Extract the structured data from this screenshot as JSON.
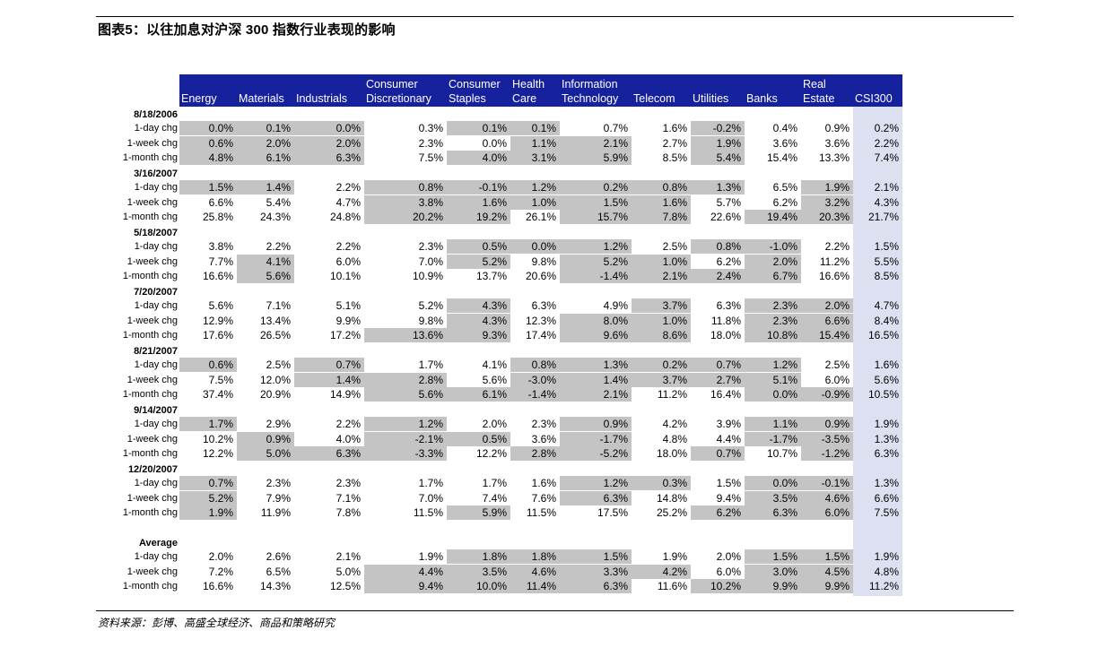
{
  "title": "图表5：以往加息对沪深 300 指数行业表现的影响",
  "source": "资料来源：彭博、高盛全球经济、商品和策略研究",
  "columns": [
    "Energy",
    "Materials",
    "Industrials",
    "Consumer\nDiscretionary",
    "Consumer\nStaples",
    "Health\nCare",
    "Information\nTechnology",
    "Telecom",
    "Utilities",
    "Banks",
    "Real\nEstate",
    "CSI300"
  ],
  "groups": [
    {
      "label": "8/18/2006",
      "rows": [
        {
          "label": "1-day chg",
          "values": [
            "0.0%",
            "0.1%",
            "0.0%",
            "0.3%",
            "0.1%",
            "0.1%",
            "0.7%",
            "1.6%",
            "-0.2%",
            "0.4%",
            "0.9%",
            "0.2%"
          ],
          "hl": [
            1,
            1,
            1,
            0,
            1,
            1,
            0,
            0,
            1,
            0,
            0,
            0
          ]
        },
        {
          "label": "1-week chg",
          "values": [
            "0.6%",
            "2.0%",
            "2.0%",
            "2.3%",
            "0.0%",
            "1.1%",
            "2.1%",
            "2.7%",
            "1.9%",
            "3.6%",
            "3.6%",
            "2.2%"
          ],
          "hl": [
            1,
            1,
            1,
            0,
            0,
            1,
            1,
            0,
            1,
            0,
            0,
            0
          ]
        },
        {
          "label": "1-month chg",
          "values": [
            "4.8%",
            "6.1%",
            "6.3%",
            "7.5%",
            "4.0%",
            "3.1%",
            "5.9%",
            "8.5%",
            "5.4%",
            "15.4%",
            "13.3%",
            "7.4%"
          ],
          "hl": [
            1,
            1,
            1,
            0,
            1,
            1,
            1,
            0,
            1,
            0,
            0,
            0
          ]
        }
      ]
    },
    {
      "label": "3/16/2007",
      "rows": [
        {
          "label": "1-day chg",
          "values": [
            "1.5%",
            "1.4%",
            "2.2%",
            "0.8%",
            "-0.1%",
            "1.2%",
            "0.2%",
            "0.8%",
            "1.3%",
            "6.5%",
            "1.9%",
            "2.1%"
          ],
          "hl": [
            1,
            1,
            0,
            1,
            1,
            1,
            1,
            1,
            1,
            0,
            1,
            0
          ]
        },
        {
          "label": "1-week chg",
          "values": [
            "6.6%",
            "5.4%",
            "4.7%",
            "3.8%",
            "1.6%",
            "1.0%",
            "1.5%",
            "1.6%",
            "5.7%",
            "6.2%",
            "3.2%",
            "4.3%"
          ],
          "hl": [
            0,
            0,
            0,
            1,
            1,
            1,
            1,
            1,
            0,
            0,
            1,
            0
          ]
        },
        {
          "label": "1-month chg",
          "values": [
            "25.8%",
            "24.3%",
            "24.8%",
            "20.2%",
            "19.2%",
            "26.1%",
            "15.7%",
            "7.8%",
            "22.6%",
            "19.4%",
            "20.3%",
            "21.7%"
          ],
          "hl": [
            0,
            0,
            0,
            1,
            1,
            0,
            1,
            1,
            0,
            1,
            1,
            0
          ]
        }
      ]
    },
    {
      "label": "5/18/2007",
      "rows": [
        {
          "label": "1-day chg",
          "values": [
            "3.8%",
            "2.2%",
            "2.2%",
            "2.3%",
            "0.5%",
            "0.0%",
            "1.2%",
            "2.5%",
            "0.8%",
            "-1.0%",
            "2.2%",
            "1.5%"
          ],
          "hl": [
            0,
            0,
            0,
            0,
            1,
            1,
            1,
            0,
            1,
            1,
            0,
            0
          ]
        },
        {
          "label": "1-week chg",
          "values": [
            "7.7%",
            "4.1%",
            "6.0%",
            "7.0%",
            "5.2%",
            "9.8%",
            "5.2%",
            "1.0%",
            "6.2%",
            "2.0%",
            "11.2%",
            "5.5%"
          ],
          "hl": [
            0,
            1,
            0,
            0,
            1,
            0,
            1,
            1,
            0,
            1,
            0,
            0
          ]
        },
        {
          "label": "1-month chg",
          "values": [
            "16.6%",
            "5.6%",
            "10.1%",
            "10.9%",
            "13.7%",
            "20.6%",
            "-1.4%",
            "2.1%",
            "2.4%",
            "6.7%",
            "16.6%",
            "8.5%"
          ],
          "hl": [
            0,
            1,
            0,
            0,
            0,
            0,
            1,
            1,
            1,
            1,
            0,
            0
          ]
        }
      ]
    },
    {
      "label": "7/20/2007",
      "rows": [
        {
          "label": "1-day chg",
          "values": [
            "5.6%",
            "7.1%",
            "5.1%",
            "5.2%",
            "4.3%",
            "6.3%",
            "4.9%",
            "3.7%",
            "6.3%",
            "2.3%",
            "2.0%",
            "4.7%"
          ],
          "hl": [
            0,
            0,
            0,
            0,
            1,
            0,
            0,
            1,
            0,
            1,
            1,
            0
          ]
        },
        {
          "label": "1-week chg",
          "values": [
            "12.9%",
            "13.4%",
            "9.9%",
            "9.8%",
            "4.3%",
            "12.3%",
            "8.0%",
            "1.0%",
            "11.8%",
            "2.3%",
            "6.6%",
            "8.4%"
          ],
          "hl": [
            0,
            0,
            0,
            0,
            1,
            0,
            1,
            1,
            0,
            1,
            1,
            0
          ]
        },
        {
          "label": "1-month chg",
          "values": [
            "17.6%",
            "26.5%",
            "17.2%",
            "13.6%",
            "9.3%",
            "17.4%",
            "9.6%",
            "8.6%",
            "18.0%",
            "10.8%",
            "15.4%",
            "16.5%"
          ],
          "hl": [
            0,
            0,
            0,
            1,
            1,
            0,
            1,
            1,
            0,
            1,
            1,
            0
          ]
        }
      ]
    },
    {
      "label": "8/21/2007",
      "rows": [
        {
          "label": "1-day chg",
          "values": [
            "0.6%",
            "2.5%",
            "0.7%",
            "1.7%",
            "4.1%",
            "0.8%",
            "1.3%",
            "0.2%",
            "0.7%",
            "1.2%",
            "2.5%",
            "1.6%"
          ],
          "hl": [
            1,
            0,
            1,
            0,
            0,
            1,
            1,
            1,
            1,
            1,
            0,
            0
          ]
        },
        {
          "label": "1-week chg",
          "values": [
            "7.5%",
            "12.0%",
            "1.4%",
            "2.8%",
            "5.6%",
            "-3.0%",
            "1.4%",
            "3.7%",
            "2.7%",
            "5.1%",
            "6.0%",
            "5.6%"
          ],
          "hl": [
            0,
            0,
            1,
            1,
            0,
            1,
            1,
            1,
            1,
            1,
            0,
            0
          ]
        },
        {
          "label": "1-month chg",
          "values": [
            "37.4%",
            "20.9%",
            "14.9%",
            "5.6%",
            "6.1%",
            "-1.4%",
            "2.1%",
            "11.2%",
            "16.4%",
            "0.0%",
            "-0.9%",
            "10.5%"
          ],
          "hl": [
            0,
            0,
            0,
            1,
            1,
            1,
            1,
            0,
            0,
            1,
            1,
            0
          ]
        }
      ]
    },
    {
      "label": "9/14/2007",
      "rows": [
        {
          "label": "1-day chg",
          "values": [
            "1.7%",
            "2.9%",
            "2.2%",
            "1.2%",
            "2.0%",
            "2.3%",
            "0.9%",
            "4.2%",
            "3.9%",
            "1.1%",
            "0.9%",
            "1.9%"
          ],
          "hl": [
            1,
            0,
            0,
            1,
            0,
            0,
            1,
            0,
            0,
            1,
            1,
            0
          ]
        },
        {
          "label": "1-week chg",
          "values": [
            "10.2%",
            "0.9%",
            "4.0%",
            "-2.1%",
            "0.5%",
            "3.6%",
            "-1.7%",
            "4.8%",
            "4.4%",
            "-1.7%",
            "-3.5%",
            "1.3%"
          ],
          "hl": [
            0,
            1,
            0,
            1,
            1,
            0,
            1,
            0,
            0,
            1,
            1,
            0
          ]
        },
        {
          "label": "1-month chg",
          "values": [
            "12.2%",
            "5.0%",
            "6.3%",
            "-3.3%",
            "12.2%",
            "2.8%",
            "-5.2%",
            "18.0%",
            "0.7%",
            "10.7%",
            "-1.2%",
            "6.3%"
          ],
          "hl": [
            0,
            1,
            1,
            1,
            0,
            1,
            1,
            0,
            1,
            0,
            1,
            0
          ]
        }
      ]
    },
    {
      "label": "12/20/2007",
      "rows": [
        {
          "label": "1-day chg",
          "values": [
            "0.7%",
            "2.3%",
            "2.3%",
            "1.7%",
            "1.7%",
            "1.6%",
            "1.2%",
            "0.3%",
            "1.5%",
            "0.0%",
            "-0.1%",
            "1.3%"
          ],
          "hl": [
            1,
            0,
            0,
            0,
            0,
            0,
            1,
            1,
            0,
            1,
            1,
            0
          ]
        },
        {
          "label": "1-week chg",
          "values": [
            "5.2%",
            "7.9%",
            "7.1%",
            "7.0%",
            "7.4%",
            "7.6%",
            "6.3%",
            "14.8%",
            "9.4%",
            "3.5%",
            "4.6%",
            "6.6%"
          ],
          "hl": [
            1,
            0,
            0,
            0,
            0,
            0,
            1,
            0,
            0,
            1,
            1,
            0
          ]
        },
        {
          "label": "1-month chg",
          "values": [
            "1.9%",
            "11.9%",
            "7.8%",
            "11.5%",
            "5.9%",
            "11.5%",
            "17.5%",
            "25.2%",
            "6.2%",
            "6.3%",
            "6.0%",
            "7.5%"
          ],
          "hl": [
            1,
            0,
            0,
            0,
            1,
            0,
            0,
            0,
            1,
            1,
            1,
            0
          ]
        }
      ]
    },
    {
      "label": "Average",
      "rows": [
        {
          "label": "1-day chg",
          "values": [
            "2.0%",
            "2.6%",
            "2.1%",
            "1.9%",
            "1.8%",
            "1.8%",
            "1.5%",
            "1.9%",
            "2.0%",
            "1.5%",
            "1.5%",
            "1.9%"
          ],
          "hl": [
            0,
            0,
            0,
            0,
            1,
            1,
            1,
            0,
            0,
            1,
            1,
            0
          ]
        },
        {
          "label": "1-week chg",
          "values": [
            "7.2%",
            "6.5%",
            "5.0%",
            "4.4%",
            "3.5%",
            "4.6%",
            "3.3%",
            "4.2%",
            "6.0%",
            "3.0%",
            "4.5%",
            "4.8%"
          ],
          "hl": [
            0,
            0,
            0,
            1,
            1,
            1,
            1,
            1,
            0,
            1,
            1,
            0
          ]
        },
        {
          "label": "1-month chg",
          "values": [
            "16.6%",
            "14.3%",
            "12.5%",
            "9.4%",
            "10.0%",
            "11.4%",
            "6.3%",
            "11.6%",
            "10.2%",
            "9.9%",
            "9.9%",
            "11.2%"
          ],
          "hl": [
            0,
            0,
            0,
            1,
            1,
            1,
            1,
            0,
            1,
            1,
            1,
            0
          ]
        }
      ]
    }
  ]
}
